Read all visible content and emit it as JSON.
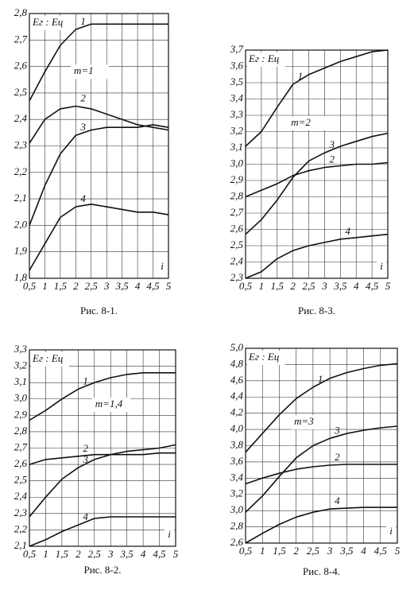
{
  "chart_data": [
    {
      "type": "line",
      "caption": "Рис. 8-1.",
      "y_label": "Eг : Eц",
      "x_label": "i",
      "annotation": "m=1",
      "grid": true,
      "x": [
        0.5,
        1,
        1.5,
        2,
        2.5,
        3,
        3.5,
        4,
        4.5,
        5
      ],
      "xlim": [
        0.5,
        5
      ],
      "xticks": [
        {
          "value": 0.5,
          "label": "0,5"
        },
        1,
        {
          "value": 1.5,
          "label": "1,5"
        },
        2,
        {
          "value": 2.5,
          "label": "2,5"
        },
        3,
        {
          "value": 3.5,
          "label": "3,5"
        },
        4,
        {
          "value": 4.5,
          "label": "4,5"
        },
        5
      ],
      "ylim": [
        1.8,
        2.8
      ],
      "yticks": [
        {
          "value": 1.8,
          "label": "1,8"
        },
        {
          "value": 1.9,
          "label": "1,9"
        },
        {
          "value": 2.0,
          "label": "2,0"
        },
        {
          "value": 2.1,
          "label": "2,1"
        },
        {
          "value": 2.2,
          "label": "2,2"
        },
        {
          "value": 2.3,
          "label": "2,3"
        },
        {
          "value": 2.4,
          "label": "2,4"
        },
        {
          "value": 2.5,
          "label": "2,5"
        },
        {
          "value": 2.6,
          "label": "2,6"
        },
        {
          "value": 2.7,
          "label": "2,7"
        },
        {
          "value": 2.8,
          "label": "2,8"
        }
      ],
      "series": [
        {
          "name": "1",
          "color": "#111111",
          "values": [
            2.47,
            2.58,
            2.68,
            2.74,
            2.76,
            2.76,
            2.76,
            2.76,
            2.76,
            2.76
          ]
        },
        {
          "name": "2",
          "color": "#111111",
          "values": [
            2.31,
            2.4,
            2.44,
            2.45,
            2.44,
            2.42,
            2.4,
            2.38,
            2.37,
            2.36
          ]
        },
        {
          "name": "3",
          "color": "#111111",
          "values": [
            2.0,
            2.15,
            2.27,
            2.34,
            2.36,
            2.37,
            2.37,
            2.37,
            2.38,
            2.37
          ]
        },
        {
          "name": "4",
          "color": "#111111",
          "values": [
            1.83,
            1.93,
            2.03,
            2.07,
            2.08,
            2.07,
            2.06,
            2.05,
            2.05,
            2.04
          ]
        }
      ]
    },
    {
      "type": "line",
      "caption": "Рис. 8-3.",
      "y_label": "Eг : Eц",
      "x_label": "i",
      "annotation": "m=2",
      "grid": true,
      "x": [
        0.5,
        1,
        1.5,
        2,
        2.5,
        3,
        3.5,
        4,
        4.5,
        5
      ],
      "xlim": [
        0.5,
        5
      ],
      "xticks": [
        {
          "value": 0.5,
          "label": "0,5"
        },
        1,
        {
          "value": 1.5,
          "label": "1,5"
        },
        2,
        {
          "value": 2.5,
          "label": "2,5"
        },
        3,
        {
          "value": 3.5,
          "label": "3,5"
        },
        4,
        {
          "value": 4.5,
          "label": "4,5"
        },
        5
      ],
      "ylim": [
        2.3,
        3.7
      ],
      "yticks": [
        {
          "value": 2.3,
          "label": "2,3"
        },
        {
          "value": 2.4,
          "label": "2,4"
        },
        {
          "value": 2.5,
          "label": "2,5"
        },
        {
          "value": 2.6,
          "label": "2,6"
        },
        {
          "value": 2.7,
          "label": "2,7"
        },
        {
          "value": 2.8,
          "label": "2,8"
        },
        {
          "value": 2.9,
          "label": "2,9"
        },
        {
          "value": 3.0,
          "label": "3,0"
        },
        {
          "value": 3.1,
          "label": "3,1"
        },
        {
          "value": 3.2,
          "label": "3,2"
        },
        {
          "value": 3.3,
          "label": "3,3"
        },
        {
          "value": 3.4,
          "label": "3,4"
        },
        {
          "value": 3.5,
          "label": "3,5"
        },
        {
          "value": 3.6,
          "label": "3,6"
        },
        {
          "value": 3.7,
          "label": "3,7"
        }
      ],
      "series": [
        {
          "name": "1",
          "color": "#111111",
          "values": [
            3.11,
            3.2,
            3.35,
            3.49,
            3.55,
            3.59,
            3.63,
            3.66,
            3.69,
            3.7
          ]
        },
        {
          "name": "2",
          "color": "#111111",
          "values": [
            2.8,
            2.84,
            2.88,
            2.93,
            2.96,
            2.98,
            2.99,
            3.0,
            3.0,
            3.01
          ]
        },
        {
          "name": "3",
          "color": "#111111",
          "values": [
            2.57,
            2.66,
            2.78,
            2.92,
            3.02,
            3.07,
            3.11,
            3.14,
            3.17,
            3.19
          ]
        },
        {
          "name": "4",
          "color": "#111111",
          "values": [
            2.3,
            2.34,
            2.42,
            2.47,
            2.5,
            2.52,
            2.54,
            2.55,
            2.56,
            2.57
          ]
        }
      ]
    },
    {
      "type": "line",
      "caption": "Рис. 8-2.",
      "y_label": "Eг : Eц",
      "x_label": "i",
      "annotation": "m=1,4",
      "grid": true,
      "x": [
        0.5,
        1,
        1.5,
        2,
        2.5,
        3,
        3.5,
        4,
        4.5,
        5
      ],
      "xlim": [
        0.5,
        5
      ],
      "xticks": [
        {
          "value": 0.5,
          "label": "0,5"
        },
        1,
        {
          "value": 1.5,
          "label": "1,5"
        },
        2,
        {
          "value": 2.5,
          "label": "2,5"
        },
        3,
        {
          "value": 3.5,
          "label": "3,5"
        },
        4,
        {
          "value": 4.5,
          "label": "4,5"
        },
        5
      ],
      "ylim": [
        2.1,
        3.3
      ],
      "yticks": [
        {
          "value": 2.1,
          "label": "2,1"
        },
        {
          "value": 2.2,
          "label": "2,2"
        },
        {
          "value": 2.3,
          "label": "2,3"
        },
        {
          "value": 2.4,
          "label": "2,4"
        },
        {
          "value": 2.5,
          "label": "2,5"
        },
        {
          "value": 2.6,
          "label": "2,6"
        },
        {
          "value": 2.7,
          "label": "2,7"
        },
        {
          "value": 2.8,
          "label": "2,8"
        },
        {
          "value": 2.9,
          "label": "2,9"
        },
        {
          "value": 3.0,
          "label": "3,0"
        },
        {
          "value": 3.1,
          "label": "3,1"
        },
        {
          "value": 3.2,
          "label": "3,2"
        },
        {
          "value": 3.3,
          "label": "3,3"
        }
      ],
      "series": [
        {
          "name": "1",
          "color": "#111111",
          "values": [
            2.87,
            2.93,
            3.0,
            3.06,
            3.1,
            3.13,
            3.15,
            3.16,
            3.16,
            3.16
          ]
        },
        {
          "name": "2",
          "color": "#111111",
          "values": [
            2.6,
            2.63,
            2.64,
            2.65,
            2.66,
            2.66,
            2.66,
            2.66,
            2.67,
            2.67
          ]
        },
        {
          "name": "3",
          "color": "#111111",
          "values": [
            2.28,
            2.4,
            2.51,
            2.58,
            2.63,
            2.66,
            2.68,
            2.69,
            2.7,
            2.72
          ]
        },
        {
          "name": "4",
          "color": "#111111",
          "values": [
            2.1,
            2.14,
            2.19,
            2.23,
            2.27,
            2.28,
            2.28,
            2.28,
            2.28,
            2.28
          ]
        }
      ]
    },
    {
      "type": "line",
      "caption": "Рис. 8-4.",
      "y_label": "Eг : Eц",
      "x_label": "i",
      "annotation": "m=3",
      "grid": true,
      "x": [
        0.5,
        1,
        1.5,
        2,
        2.5,
        3,
        3.5,
        4,
        4.5,
        5
      ],
      "xlim": [
        0.5,
        5
      ],
      "xticks": [
        {
          "value": 0.5,
          "label": "0,5"
        },
        1,
        {
          "value": 1.5,
          "label": "1,5"
        },
        2,
        {
          "value": 2.5,
          "label": "2,5"
        },
        3,
        {
          "value": 3.5,
          "label": "3,5"
        },
        4,
        {
          "value": 4.5,
          "label": "4,5"
        },
        5
      ],
      "ylim": [
        2.6,
        5.0
      ],
      "yticks": [
        {
          "value": 2.6,
          "label": "2,6"
        },
        {
          "value": 2.8,
          "label": "2,8"
        },
        {
          "value": 3.0,
          "label": "3,0"
        },
        {
          "value": 3.2,
          "label": "3,2"
        },
        {
          "value": 3.4,
          "label": "3,4"
        },
        {
          "value": 3.6,
          "label": "3,6"
        },
        {
          "value": 3.8,
          "label": "3,8"
        },
        {
          "value": 4.0,
          "label": "4,0"
        },
        {
          "value": 4.2,
          "label": "4,2"
        },
        {
          "value": 4.4,
          "label": "4,4"
        },
        {
          "value": 4.6,
          "label": "4,6"
        },
        {
          "value": 4.8,
          "label": "4,8"
        },
        {
          "value": 5.0,
          "label": "5,0"
        }
      ],
      "series": [
        {
          "name": "1",
          "color": "#111111",
          "values": [
            3.72,
            3.95,
            4.18,
            4.38,
            4.52,
            4.63,
            4.7,
            4.75,
            4.79,
            4.81
          ]
        },
        {
          "name": "2",
          "color": "#111111",
          "values": [
            3.33,
            3.4,
            3.46,
            3.51,
            3.54,
            3.56,
            3.57,
            3.57,
            3.57,
            3.57
          ]
        },
        {
          "name": "3",
          "color": "#111111",
          "values": [
            2.98,
            3.18,
            3.42,
            3.65,
            3.8,
            3.89,
            3.95,
            3.99,
            4.02,
            4.04
          ]
        },
        {
          "name": "4",
          "color": "#111111",
          "values": [
            2.6,
            2.72,
            2.83,
            2.92,
            2.98,
            3.02,
            3.03,
            3.04,
            3.04,
            3.04
          ]
        }
      ]
    }
  ]
}
